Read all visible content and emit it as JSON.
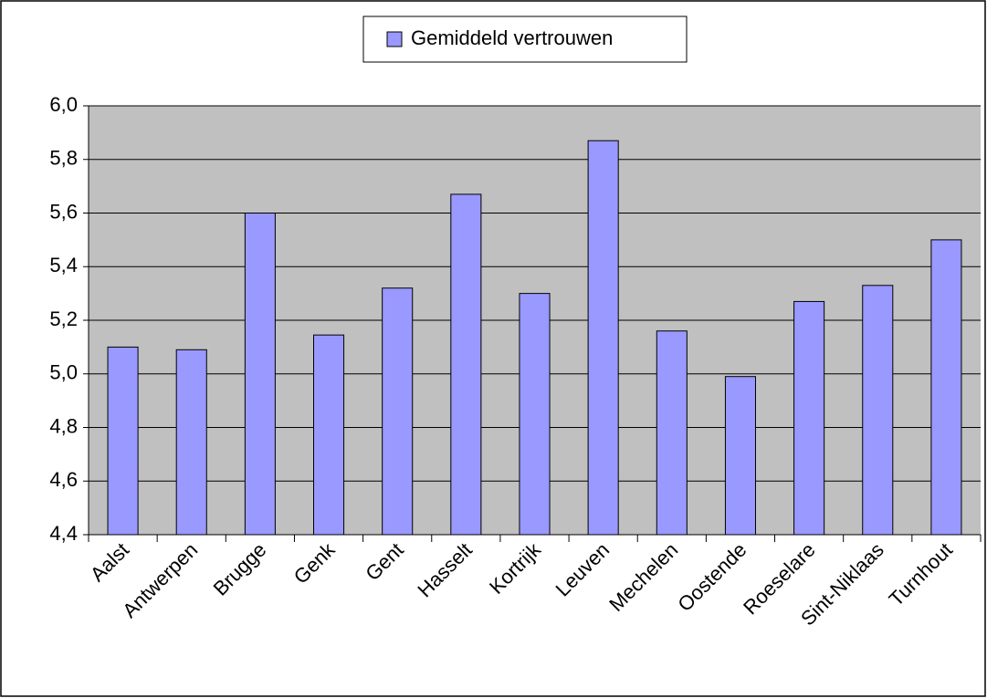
{
  "chart_data": {
    "type": "bar",
    "categories": [
      "Aalst",
      "Antwerpen",
      "Brugge",
      "Genk",
      "Gent",
      "Hasselt",
      "Kortrijk",
      "Leuven",
      "Mechelen",
      "Oostende",
      "Roeselare",
      "Sint-Niklaas",
      "Turnhout"
    ],
    "series": [
      {
        "name": "Gemiddeld vertrouwen",
        "color": "#9999ff",
        "values": [
          5.1,
          5.09,
          5.6,
          5.145,
          5.32,
          5.67,
          5.3,
          5.87,
          5.16,
          4.99,
          5.27,
          5.33,
          5.5
        ]
      }
    ],
    "ylim": [
      4.4,
      6.0
    ],
    "yticks": [
      {
        "value": 4.4,
        "label": "4,4"
      },
      {
        "value": 4.6,
        "label": "4,6"
      },
      {
        "value": 4.8,
        "label": "4,8"
      },
      {
        "value": 5.0,
        "label": "5,0"
      },
      {
        "value": 5.2,
        "label": "5,2"
      },
      {
        "value": 5.4,
        "label": "5,4"
      },
      {
        "value": 5.6,
        "label": "5,6"
      },
      {
        "value": 5.8,
        "label": "5,8"
      },
      {
        "value": 6.0,
        "label": "6,0"
      }
    ],
    "grid": true,
    "legend": "top"
  }
}
